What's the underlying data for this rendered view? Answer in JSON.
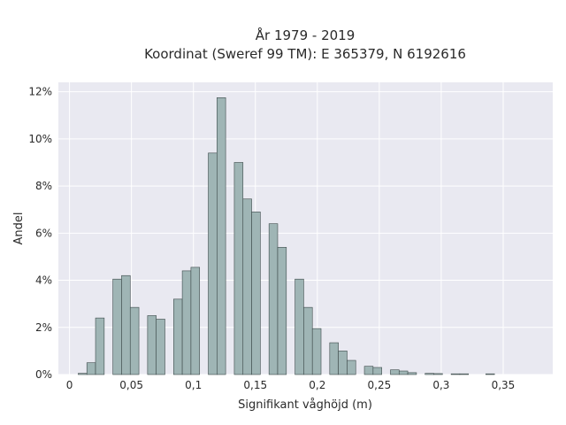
{
  "chart_data": {
    "type": "bar",
    "title_line1": "År 1979 - 2019",
    "title_line2": "Koordinat (Sweref 99 TM): E 365379, N 6192616",
    "xlabel": "Signifikant våghöjd (m)",
    "ylabel": "Andel",
    "xlim": [
      -0.009,
      0.39
    ],
    "ylim": [
      0,
      12.4
    ],
    "bin_width": 0.007,
    "x_ticks": [
      {
        "value": 0,
        "label": "0"
      },
      {
        "value": 0.05,
        "label": "0,05"
      },
      {
        "value": 0.1,
        "label": "0,1"
      },
      {
        "value": 0.15,
        "label": "0,15"
      },
      {
        "value": 0.2,
        "label": "0,2"
      },
      {
        "value": 0.25,
        "label": "0,25"
      },
      {
        "value": 0.3,
        "label": "0,3"
      },
      {
        "value": 0.35,
        "label": "0,35"
      }
    ],
    "y_ticks": [
      {
        "value": 0,
        "label": "0%"
      },
      {
        "value": 2,
        "label": "2%"
      },
      {
        "value": 4,
        "label": "4%"
      },
      {
        "value": 6,
        "label": "6%"
      },
      {
        "value": 8,
        "label": "8%"
      },
      {
        "value": 10,
        "label": "10%"
      },
      {
        "value": 12,
        "label": "12%"
      }
    ],
    "bins": [
      {
        "x": 0.0105,
        "value": 0.05
      },
      {
        "x": 0.0175,
        "value": 0.5
      },
      {
        "x": 0.0245,
        "value": 2.4
      },
      {
        "x": 0.0385,
        "value": 4.05
      },
      {
        "x": 0.0455,
        "value": 4.2
      },
      {
        "x": 0.0525,
        "value": 2.85
      },
      {
        "x": 0.0665,
        "value": 2.5
      },
      {
        "x": 0.0735,
        "value": 2.35
      },
      {
        "x": 0.0875,
        "value": 3.2
      },
      {
        "x": 0.0945,
        "value": 4.4
      },
      {
        "x": 0.1015,
        "value": 4.55
      },
      {
        "x": 0.1155,
        "value": 9.4
      },
      {
        "x": 0.1225,
        "value": 11.75
      },
      {
        "x": 0.1365,
        "value": 9.0
      },
      {
        "x": 0.1435,
        "value": 7.45
      },
      {
        "x": 0.1505,
        "value": 6.9
      },
      {
        "x": 0.1645,
        "value": 6.4
      },
      {
        "x": 0.1715,
        "value": 5.4
      },
      {
        "x": 0.1855,
        "value": 4.05
      },
      {
        "x": 0.1925,
        "value": 2.85
      },
      {
        "x": 0.1995,
        "value": 1.95
      },
      {
        "x": 0.2135,
        "value": 1.35
      },
      {
        "x": 0.2205,
        "value": 1.0
      },
      {
        "x": 0.2275,
        "value": 0.6
      },
      {
        "x": 0.2415,
        "value": 0.35
      },
      {
        "x": 0.2485,
        "value": 0.3
      },
      {
        "x": 0.2625,
        "value": 0.2
      },
      {
        "x": 0.2695,
        "value": 0.15
      },
      {
        "x": 0.2765,
        "value": 0.08
      },
      {
        "x": 0.2905,
        "value": 0.05
      },
      {
        "x": 0.2975,
        "value": 0.04
      },
      {
        "x": 0.3115,
        "value": 0.03
      },
      {
        "x": 0.3185,
        "value": 0.03
      },
      {
        "x": 0.3395,
        "value": 0.03
      }
    ],
    "colors": {
      "plot_background": "#e9e9f1",
      "grid": "#ffffff",
      "bar_fill": "#9fb5b5",
      "bar_stroke": "#3d4a4a"
    },
    "grid": true,
    "legend": false
  }
}
